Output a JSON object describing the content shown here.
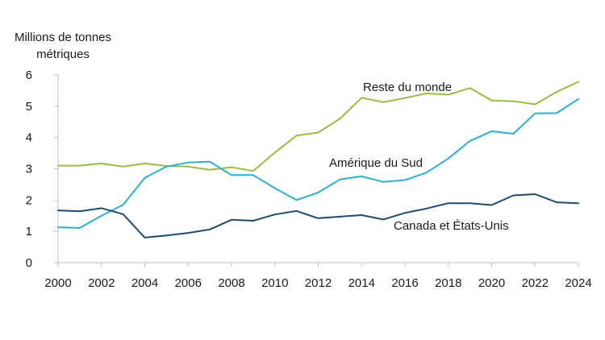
{
  "chart_data": {
    "type": "line",
    "title": "",
    "xlabel": "",
    "ylabel_lines": [
      "Millions de tonnes",
      "métriques"
    ],
    "x": [
      2000,
      2001,
      2002,
      2003,
      2004,
      2005,
      2006,
      2007,
      2008,
      2009,
      2010,
      2011,
      2012,
      2013,
      2014,
      2015,
      2016,
      2017,
      2018,
      2019,
      2020,
      2021,
      2022,
      2023,
      2024
    ],
    "xticks": [
      2000,
      2002,
      2004,
      2006,
      2008,
      2010,
      2012,
      2014,
      2016,
      2018,
      2020,
      2022,
      2024
    ],
    "xlim": [
      2000,
      2024
    ],
    "yticks": [
      0,
      1,
      2,
      3,
      4,
      5,
      6
    ],
    "ylim": [
      0,
      6
    ],
    "grid": false,
    "legend": "inline labels",
    "series": [
      {
        "name": "Reste du monde",
        "color": "#9bbb44",
        "values": [
          3.1,
          3.1,
          3.17,
          3.07,
          3.17,
          3.09,
          3.07,
          2.97,
          3.05,
          2.93,
          3.52,
          4.06,
          4.16,
          4.6,
          5.27,
          5.13,
          5.26,
          5.41,
          5.37,
          5.58,
          5.18,
          5.16,
          5.06,
          5.46,
          5.78
        ]
      },
      {
        "name": "Amérique du Sud",
        "color": "#2bb0d2",
        "values": [
          1.13,
          1.11,
          1.5,
          1.85,
          2.71,
          3.07,
          3.2,
          3.23,
          2.8,
          2.8,
          2.38,
          2.0,
          2.24,
          2.66,
          2.76,
          2.58,
          2.64,
          2.88,
          3.33,
          3.89,
          4.2,
          4.12,
          4.77,
          4.78,
          5.23
        ]
      },
      {
        "name": "Canada et États-Unis",
        "color": "#1c4b74",
        "values": [
          1.67,
          1.64,
          1.74,
          1.55,
          0.8,
          0.87,
          0.95,
          1.06,
          1.37,
          1.34,
          1.54,
          1.65,
          1.42,
          1.47,
          1.52,
          1.38,
          1.59,
          1.73,
          1.9,
          1.9,
          1.84,
          2.15,
          2.19,
          1.93,
          1.9
        ]
      }
    ]
  }
}
